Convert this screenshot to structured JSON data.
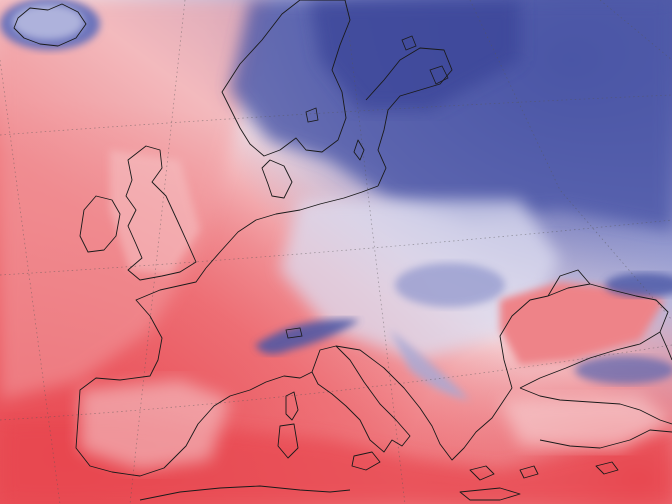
{
  "map": {
    "type": "temperature-anomaly-field",
    "region": "Europe",
    "colors": {
      "warm_strong": "#e8464f",
      "warm_mid": "#f08a8f",
      "warm_light": "#f7c4c6",
      "neutral": "#f4f1f4",
      "cool_light": "#c9cbe6",
      "cool_mid": "#7d83c4",
      "cool_strong": "#3d4a9c",
      "coastline": "#1a1a1a",
      "graticule": "#555555"
    },
    "layers": [
      "temperature-field",
      "graticule",
      "coastlines"
    ],
    "graticule": "dotted"
  }
}
